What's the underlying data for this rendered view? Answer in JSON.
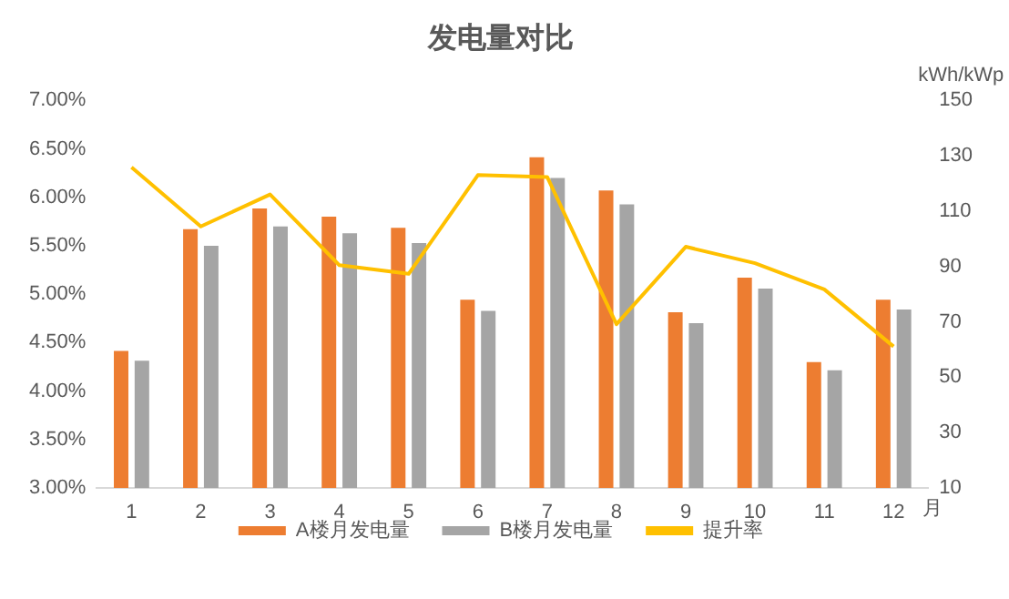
{
  "chart_data": {
    "type": "bar",
    "title": "发电量对比",
    "xlabel": "月",
    "y2label": "kWh/kWp",
    "categories": [
      "1",
      "2",
      "3",
      "4",
      "5",
      "6",
      "7",
      "8",
      "9",
      "10",
      "11",
      "12"
    ],
    "series": [
      {
        "name": "A楼月发电量",
        "axis": "y2",
        "color": "#ed7d31",
        "values": [
          59.5,
          103.5,
          111,
          108,
          104,
          78,
          129.5,
          117.5,
          73.5,
          86,
          55.5,
          78
        ]
      },
      {
        "name": "B楼月发电量",
        "axis": "y2",
        "color": "#a5a5a5",
        "values": [
          56,
          97.5,
          104.5,
          102,
          98.5,
          74,
          122,
          112.5,
          69.5,
          82,
          52.5,
          74.5
        ]
      },
      {
        "name": "提升率",
        "type": "line",
        "axis": "y",
        "color": "#ffc000",
        "marker": "none",
        "values": [
          6.31,
          5.7,
          6.03,
          5.3,
          5.21,
          6.23,
          6.21,
          4.69,
          5.49,
          5.32,
          5.05,
          4.46
        ]
      }
    ],
    "ylim": [
      3,
      7
    ],
    "yticks": [
      {
        "value": 3,
        "label": "3.00%"
      },
      {
        "value": 3.5,
        "label": "3.50%"
      },
      {
        "value": 4,
        "label": "4.00%"
      },
      {
        "value": 4.5,
        "label": "4.50%"
      },
      {
        "value": 5,
        "label": "5.00%"
      },
      {
        "value": 5.5,
        "label": "5.50%"
      },
      {
        "value": 6,
        "label": "6.00%"
      },
      {
        "value": 6.5,
        "label": "6.50%"
      },
      {
        "value": 7,
        "label": "7.00%"
      }
    ],
    "y2lim": [
      10,
      150
    ],
    "y2ticks": [
      10,
      30,
      50,
      70,
      90,
      110,
      130,
      150
    ],
    "grid": false,
    "legend": "bottom"
  }
}
